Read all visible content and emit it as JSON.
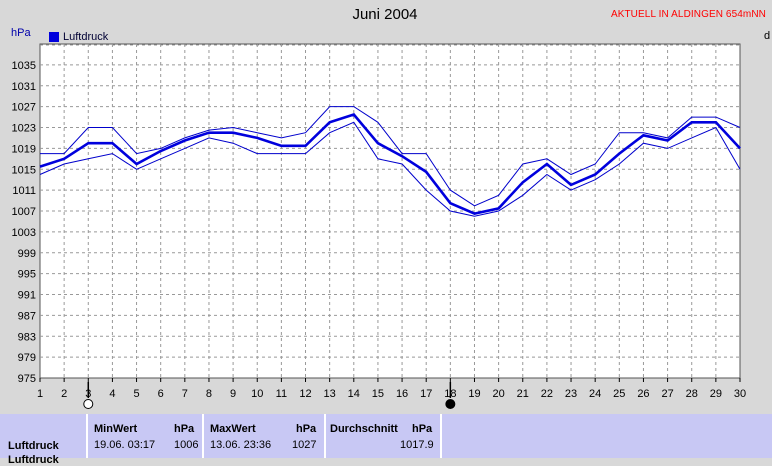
{
  "header": {
    "title": "Juni 2004",
    "live_link": "AKTUELL IN ALDINGEN 654mNN",
    "unit_left": "hPa",
    "unit_right": "d"
  },
  "chart_data": {
    "type": "line",
    "title": "Juni 2004",
    "ylabel": "hPa",
    "ylim": [
      975,
      1039
    ],
    "yticks": [
      975,
      979,
      983,
      987,
      991,
      995,
      999,
      1003,
      1007,
      1011,
      1015,
      1019,
      1023,
      1027,
      1031,
      1035
    ],
    "x": [
      1,
      2,
      3,
      4,
      5,
      6,
      7,
      8,
      9,
      10,
      11,
      12,
      13,
      14,
      15,
      16,
      17,
      18,
      19,
      20,
      21,
      22,
      23,
      24,
      25,
      26,
      27,
      28,
      29,
      30
    ],
    "xlim": [
      1,
      30
    ],
    "grid": true,
    "legend": "top-left",
    "series": [
      {
        "name": "Luftdruck",
        "values": [
          1015.5,
          1017,
          1020,
          1020,
          1016,
          1018.5,
          1020.5,
          1022,
          1022,
          1021,
          1019.5,
          1019.5,
          1024,
          1025.5,
          1020,
          1017.5,
          1014.5,
          1008.5,
          1006.5,
          1007.5,
          1012.5,
          1016,
          1012,
          1014,
          1018,
          1021.5,
          1020.5,
          1024,
          1024,
          1019
        ],
        "role": "mean"
      },
      {
        "values": [
          1018,
          1018,
          1023,
          1023,
          1018,
          1019,
          1021,
          1022.5,
          1023,
          1022,
          1021,
          1022,
          1027,
          1027,
          1024,
          1018,
          1018,
          1011,
          1008,
          1010,
          1016,
          1017,
          1014,
          1016,
          1022,
          1022,
          1021,
          1025,
          1025,
          1023
        ],
        "role": "max"
      },
      {
        "values": [
          1014,
          1016,
          1017,
          1018,
          1015,
          1017,
          1019,
          1021,
          1020,
          1018,
          1018,
          1018,
          1022,
          1024,
          1017,
          1016,
          1011,
          1007,
          1006,
          1007,
          1010,
          1014,
          1011,
          1013,
          1016,
          1020,
          1019,
          1021,
          1023,
          1015
        ],
        "role": "min"
      }
    ],
    "markers": [
      {
        "x": 3,
        "symbol": "open-circle"
      },
      {
        "x": 18,
        "symbol": "filled-circle"
      }
    ],
    "colors": {
      "mean": "#0000dd",
      "minmax": "#0000cc",
      "grid": "#999999",
      "plot_bg": "#ffffff"
    }
  },
  "stats": {
    "row_label": "Luftdruck",
    "row_label_next": "Luftdruck",
    "min": {
      "header": "MinWert",
      "unit": "hPa",
      "time": "19.06.  03:17",
      "value": "1006"
    },
    "max": {
      "header": "MaxWert",
      "unit": "hPa",
      "time": "13.06.  23:36",
      "value": "1027"
    },
    "avg": {
      "header": "Durchschnitt",
      "unit": "hPa",
      "value": "1017.9"
    }
  }
}
